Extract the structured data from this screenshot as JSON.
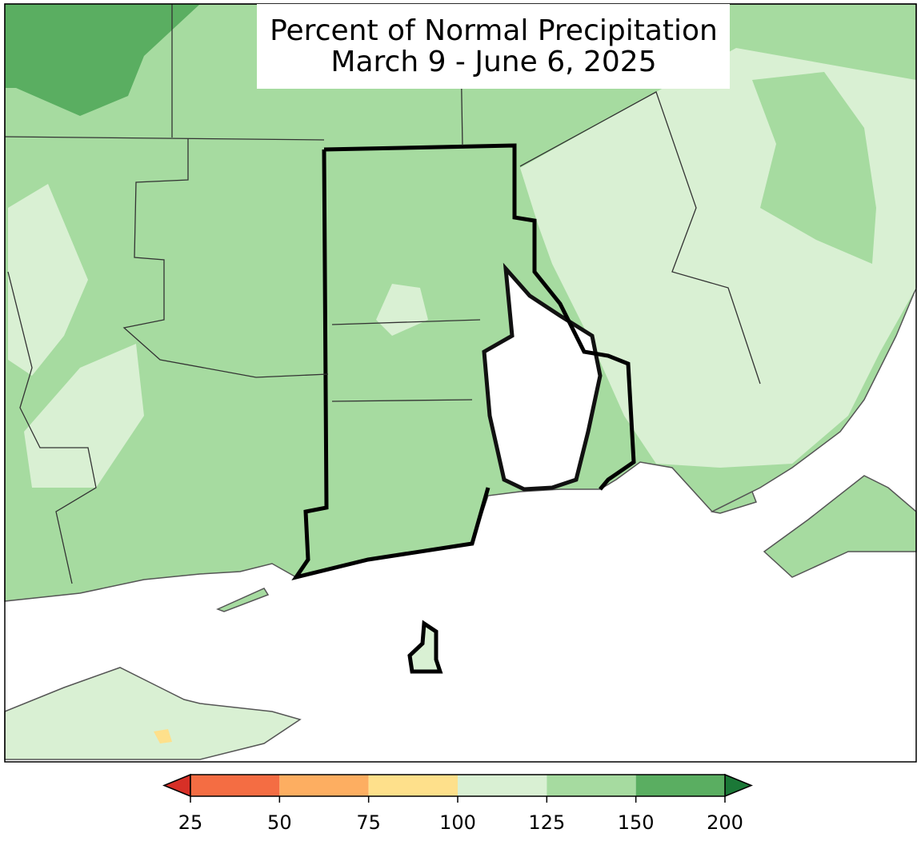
{
  "title": {
    "lines": [
      "Percent of Normal Precipitation",
      "March 9 - June 6, 2025"
    ]
  },
  "colorbar": {
    "ticks": [
      25,
      50,
      75,
      100,
      125,
      150,
      200
    ],
    "colors": [
      "#f46d43",
      "#fdae61",
      "#fee08b",
      "#d9f0d3",
      "#a6dba0",
      "#5aae61"
    ],
    "under_color": "#d73027",
    "over_color": "#1b7837"
  }
}
